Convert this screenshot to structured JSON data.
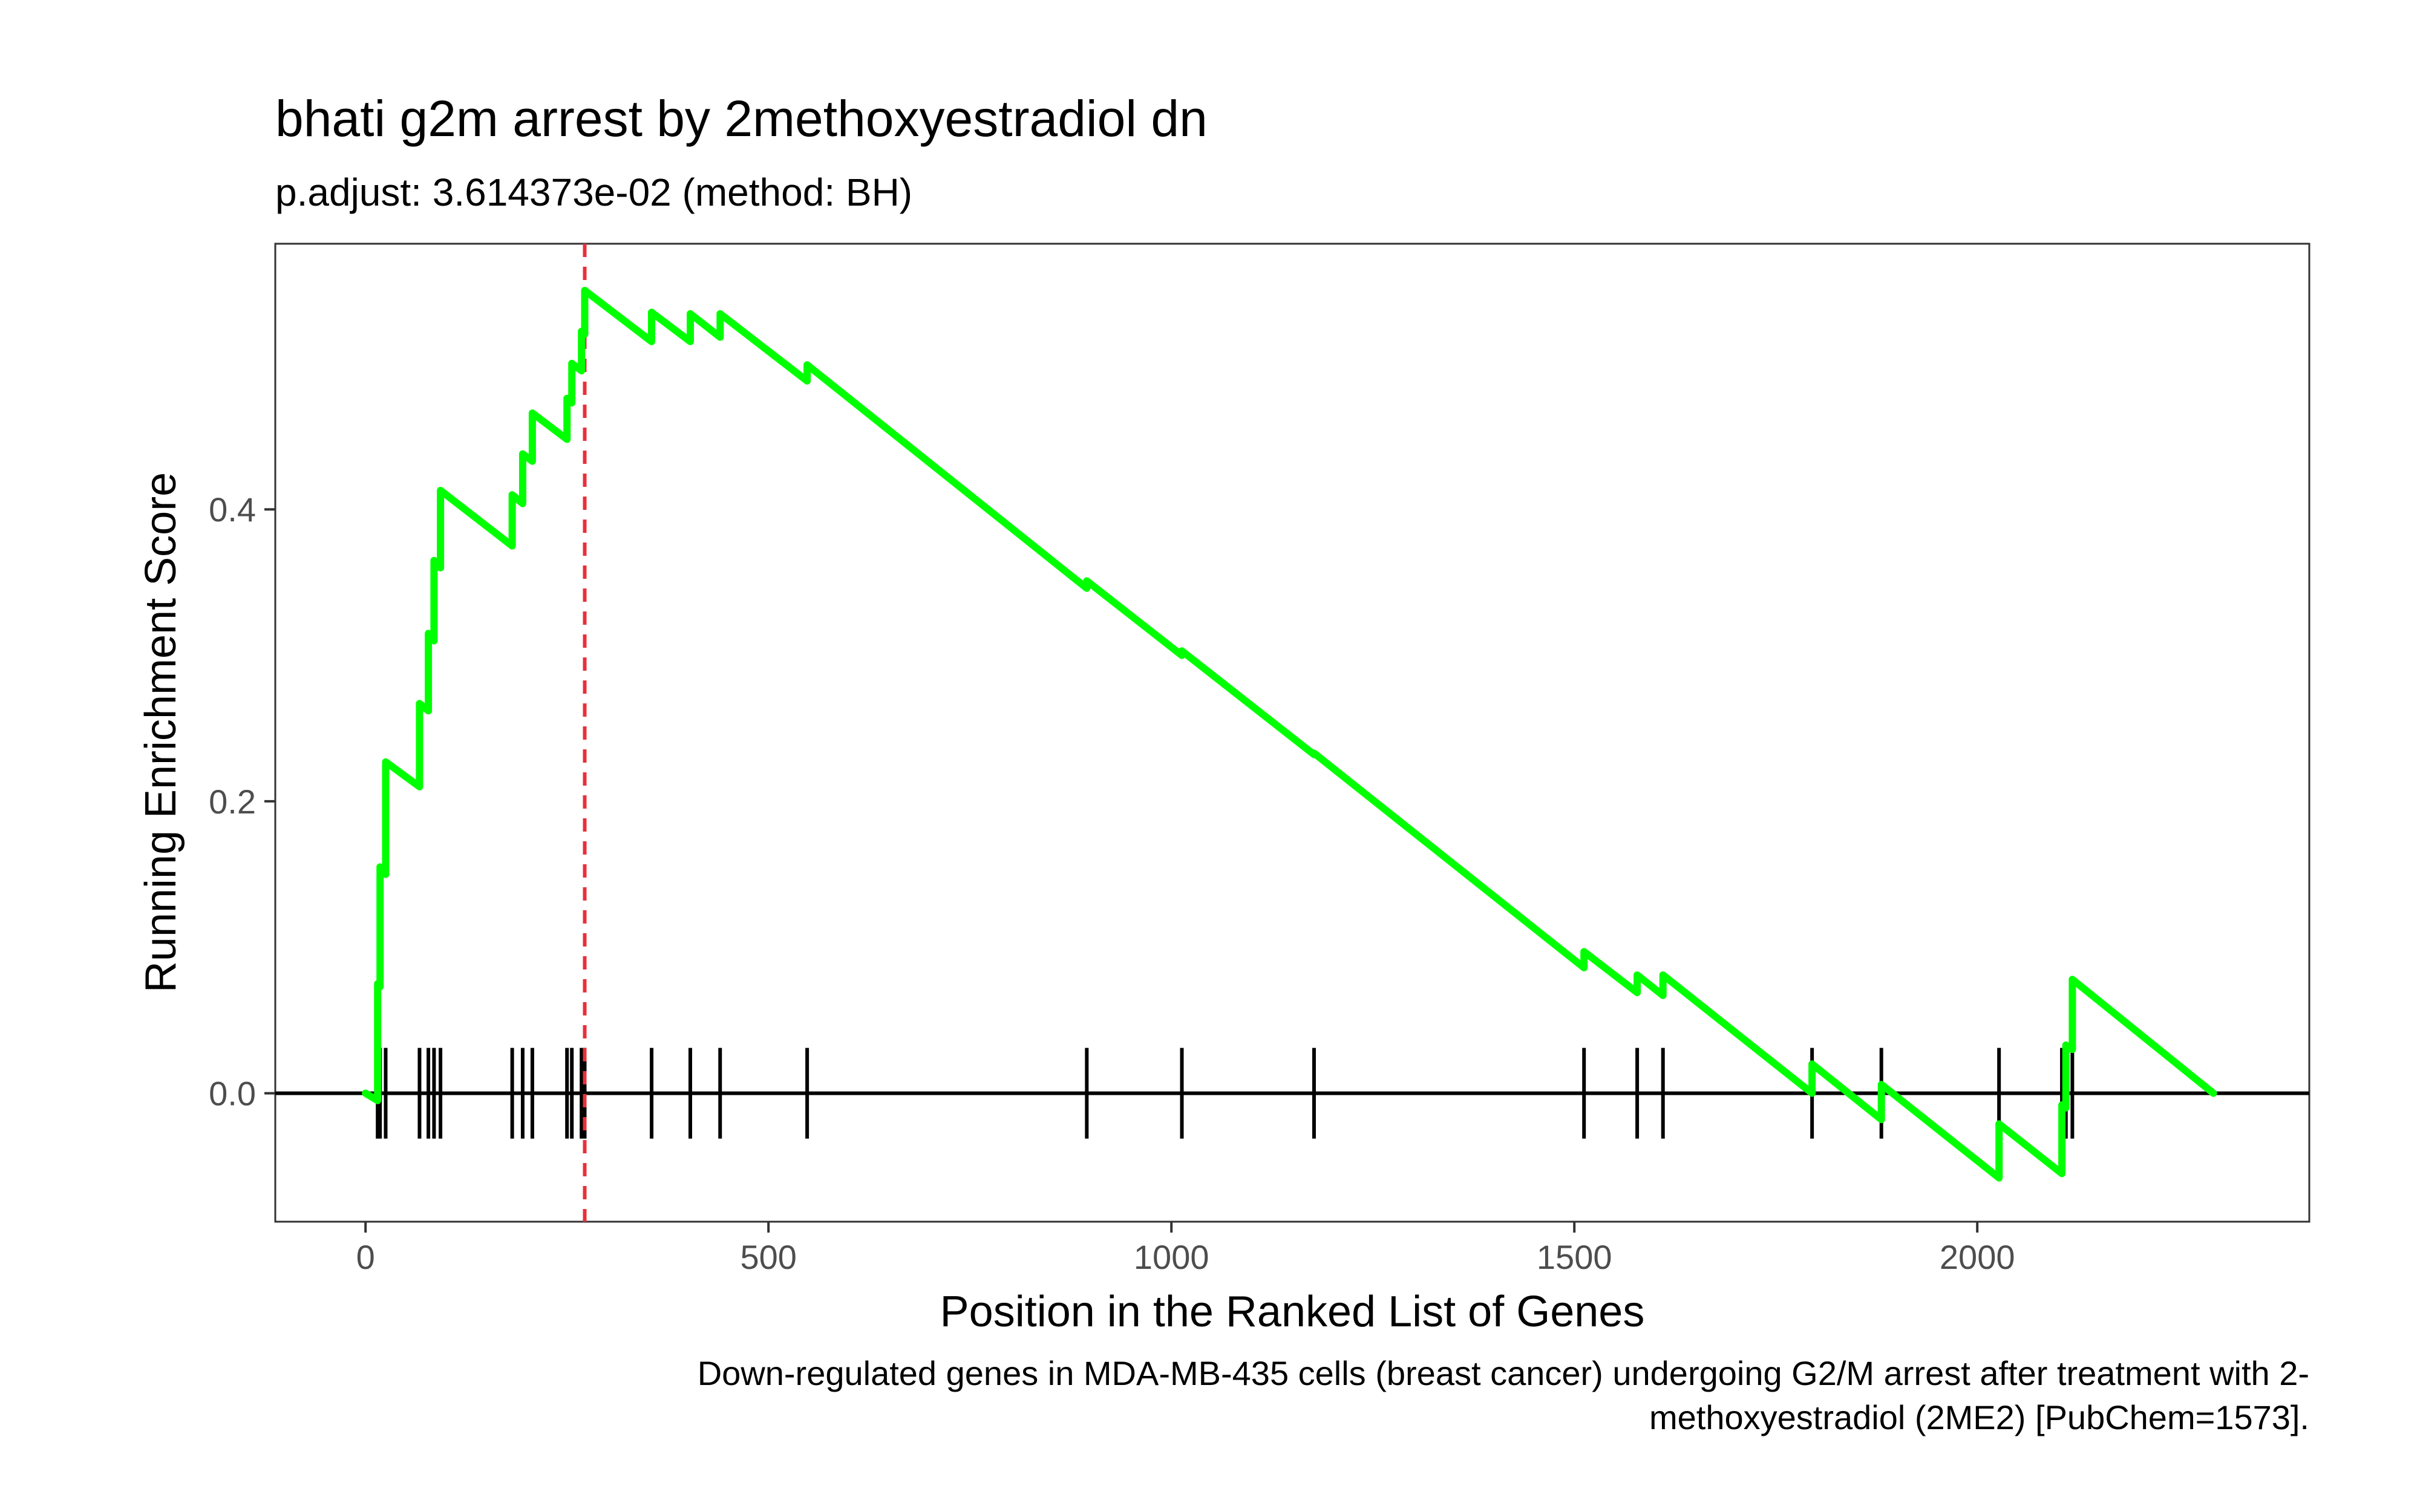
{
  "chart_data": {
    "type": "line",
    "title": "bhati g2m arrest by 2methoxyestradiol dn",
    "subtitle": "p.adjust: 3.614373e-02 (method: BH)",
    "xlabel": "Position in the Ranked List of Genes",
    "ylabel": "Running Enrichment Score",
    "caption_lines": [
      "Down-regulated genes in MDA-MB-435 cells (breast cancer) undergoing G2/M arrest after treatment with 2-",
      "methoxyestradiol (2ME2) [PubChem=1573]."
    ],
    "xlim": [
      -112,
      2412
    ],
    "ylim": [
      -0.088,
      0.582
    ],
    "x_ticks": [
      0,
      500,
      1000,
      1500,
      2000
    ],
    "x_tick_labels": [
      "0",
      "500",
      "1000",
      "1500",
      "2000"
    ],
    "y_ticks": [
      0.0,
      0.2,
      0.4
    ],
    "y_tick_labels": [
      "0.0",
      "0.2",
      "0.4"
    ],
    "grid": false,
    "line_color": "#00ff00",
    "marker_color": "#000000",
    "zero_line_color": "#000000",
    "peak_line_color": "#e8303a",
    "peak_position": 272,
    "hit_positions": [
      15,
      18,
      25,
      67,
      78,
      85,
      93,
      182,
      195,
      207,
      250,
      256,
      268,
      272,
      355,
      403,
      440,
      548,
      895,
      1013,
      1177,
      1512,
      1578,
      1610,
      1795,
      1881,
      2027,
      2105,
      2110,
      2118
    ],
    "series": [
      {
        "x": [
          0,
          15,
          15,
          18,
          18,
          25,
          25,
          67,
          67,
          78,
          78,
          85,
          85,
          93,
          93,
          182,
          182,
          195,
          195,
          207,
          207,
          250,
          250,
          256,
          256,
          268,
          268,
          272,
          272,
          355,
          355,
          403,
          403,
          440,
          440,
          548,
          548,
          895,
          895,
          1013,
          1013,
          1177,
          1177,
          1512,
          1512,
          1578,
          1578,
          1610,
          1610,
          1795,
          1795,
          1881,
          1881,
          2027,
          2027,
          2105,
          2105,
          2110,
          2110,
          2118,
          2118,
          2293
        ],
        "y": [
          0.0,
          -0.005,
          0.075,
          0.073,
          0.155,
          0.15,
          0.227,
          0.21,
          0.267,
          0.262,
          0.315,
          0.31,
          0.365,
          0.36,
          0.413,
          0.375,
          0.41,
          0.404,
          0.438,
          0.433,
          0.466,
          0.448,
          0.476,
          0.473,
          0.5,
          0.495,
          0.522,
          0.52,
          0.55,
          0.515,
          0.535,
          0.515,
          0.534,
          0.518,
          0.534,
          0.488,
          0.499,
          0.346,
          0.351,
          0.3,
          0.303,
          0.232,
          0.233,
          0.086,
          0.097,
          0.069,
          0.081,
          0.067,
          0.081,
          0.0,
          0.02,
          -0.018,
          0.006,
          -0.058,
          -0.021,
          -0.055,
          -0.008,
          -0.01,
          0.033,
          0.03,
          0.078,
          0.0
        ]
      }
    ]
  }
}
